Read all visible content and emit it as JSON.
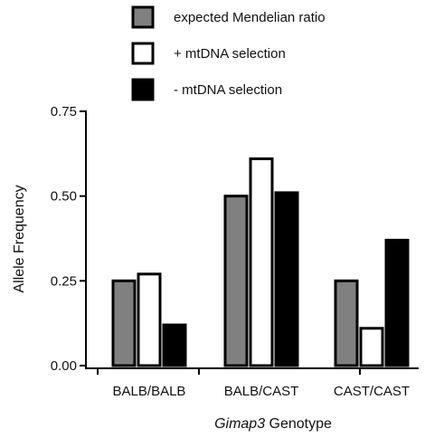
{
  "chart_data": {
    "type": "bar",
    "categories": [
      "BALB/BALB",
      "BALB/CAST",
      "CAST/CAST"
    ],
    "series": [
      {
        "name": "expected Mendelian ratio",
        "values": [
          0.25,
          0.5,
          0.25
        ],
        "color": "#808080"
      },
      {
        "name": "+ mtDNA selection",
        "values": [
          0.27,
          0.61,
          0.11
        ],
        "color": "#ffffff"
      },
      {
        "name": "- mtDNA selection",
        "values": [
          0.12,
          0.51,
          0.37
        ],
        "color": "#000000"
      }
    ],
    "ylabel": "Allele Frequency",
    "xlabel_italic": "Gimap3",
    "xlabel_rest": " Genotype",
    "ylim": [
      0,
      0.75
    ],
    "yticks": [
      0.0,
      0.25,
      0.5,
      0.75
    ],
    "ytick_labels": [
      "0.00",
      "0.25",
      "0.50",
      "0.75"
    ],
    "legend_position": "top"
  }
}
